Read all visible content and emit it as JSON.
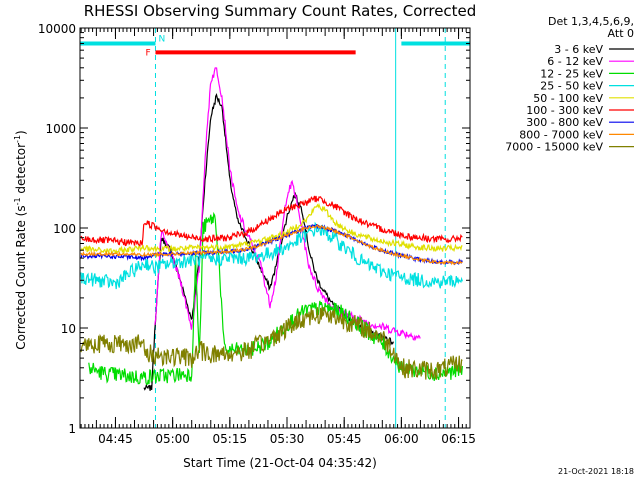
{
  "chart_data": {
    "type": "line",
    "title": "RHESSI Observing Summary Count Rates, Corrected",
    "xlabel": "Start Time (21-Oct-04 04:35:42)",
    "ylabel_parts": [
      "Corrected Count Rate (s",
      "-1",
      " detector",
      "-1",
      ")"
    ],
    "y_scale": "log",
    "ylim": [
      1,
      10000
    ],
    "y_ticks": [
      {
        "value": 1,
        "label": "1"
      },
      {
        "value": 10,
        "label": "10"
      },
      {
        "value": 100,
        "label": "100"
      },
      {
        "value": 1000,
        "label": "1000"
      },
      {
        "value": 10000,
        "label": "10000"
      }
    ],
    "xlim": [
      "04:35:42",
      "06:18:00"
    ],
    "x_ticks": [
      "04:45",
      "05:00",
      "05:15",
      "05:30",
      "05:45",
      "06:00",
      "06:15"
    ],
    "legend_position": "top-right outside",
    "legend_header": [
      "Det 1,3,4,5,6,9,",
      "Att 0"
    ],
    "footer_date": "21-Oct-2021 18:18",
    "flags": [
      {
        "label": "N",
        "color": "#00e0e0",
        "from": "04:35:42",
        "to": "04:55:30",
        "value": 7000
      },
      {
        "label": "N",
        "color": "#00e0e0",
        "from": "06:00:00",
        "to": "06:18:00",
        "value": 7000
      },
      {
        "label": "F",
        "color": "#ff0000",
        "from": "04:55:30",
        "to": "05:48:00",
        "value": 5700
      }
    ],
    "markers": [
      {
        "time": "04:55:30",
        "style": "dashed",
        "color": "#00e0e0"
      },
      {
        "time": "05:58:30",
        "style": "solid",
        "color": "#00e0e0"
      },
      {
        "time": "06:11:30",
        "style": "dashed",
        "color": "#00e0e0"
      },
      {
        "time": "04:35:42",
        "style": "solid",
        "color": "#00e0e0"
      }
    ],
    "series": [
      {
        "name": "3 - 6 keV",
        "color": "#000000",
        "noise": 0.03,
        "points": [
          [
            "04:52:30",
            2.5
          ],
          [
            "04:54:30",
            2.5
          ],
          [
            "04:55:20",
            10
          ],
          [
            "04:57:00",
            80
          ],
          [
            "04:59:30",
            60
          ],
          [
            "05:02:00",
            30
          ],
          [
            "05:05:00",
            12
          ],
          [
            "05:07:00",
            50
          ],
          [
            "05:08:30",
            300
          ],
          [
            "05:10:00",
            1300
          ],
          [
            "05:11:30",
            2100
          ],
          [
            "05:13:00",
            1600
          ],
          [
            "05:15:00",
            300
          ],
          [
            "05:17:00",
            120
          ],
          [
            "05:20:00",
            70
          ],
          [
            "05:23:00",
            40
          ],
          [
            "05:25:30",
            25
          ],
          [
            "05:27:00",
            40
          ],
          [
            "05:30:00",
            130
          ],
          [
            "05:32:00",
            220
          ],
          [
            "05:34:00",
            150
          ],
          [
            "05:36:00",
            55
          ],
          [
            "05:38:00",
            30
          ],
          [
            "05:42:00",
            17
          ],
          [
            "05:47:00",
            12
          ],
          [
            "05:52:00",
            9
          ],
          [
            "05:56:00",
            8
          ],
          [
            "05:58:00",
            7
          ]
        ]
      },
      {
        "name": "6 - 12 keV",
        "color": "#ff00ff",
        "noise": 0.04,
        "points": [
          [
            "04:55:20",
            10
          ],
          [
            "04:57:00",
            90
          ],
          [
            "04:59:30",
            55
          ],
          [
            "05:02:00",
            30
          ],
          [
            "05:05:00",
            10
          ],
          [
            "05:07:00",
            40
          ],
          [
            "05:08:30",
            500
          ],
          [
            "05:10:00",
            3000
          ],
          [
            "05:11:30",
            4000
          ],
          [
            "05:13:00",
            2000
          ],
          [
            "05:15:00",
            400
          ],
          [
            "05:17:00",
            150
          ],
          [
            "05:20:00",
            80
          ],
          [
            "05:23:00",
            45
          ],
          [
            "05:25:30",
            17
          ],
          [
            "05:27:00",
            30
          ],
          [
            "05:30:00",
            220
          ],
          [
            "05:31:30",
            280
          ],
          [
            "05:33:30",
            120
          ],
          [
            "05:35:30",
            45
          ],
          [
            "05:38:00",
            25
          ],
          [
            "05:42:00",
            16
          ],
          [
            "05:47:00",
            13
          ],
          [
            "05:52:00",
            11
          ],
          [
            "05:56:00",
            10
          ],
          [
            "06:00:00",
            9
          ],
          [
            "06:05:00",
            8
          ]
        ]
      },
      {
        "name": "12 - 25 keV",
        "color": "#00dd00",
        "noise": 0.08,
        "points": [
          [
            "04:38:00",
            4
          ],
          [
            "04:42:00",
            3.5
          ],
          [
            "04:52:00",
            3.2
          ],
          [
            "05:05:00",
            3.5
          ],
          [
            "05:06:00",
            50
          ],
          [
            "05:07:00",
            5
          ],
          [
            "05:08:00",
            100
          ],
          [
            "05:10:00",
            120
          ],
          [
            "05:11:00",
            130
          ],
          [
            "05:12:00",
            60
          ],
          [
            "05:13:30",
            6
          ],
          [
            "05:16:00",
            6
          ],
          [
            "05:20:00",
            6
          ],
          [
            "05:25:00",
            7
          ],
          [
            "05:30:00",
            11
          ],
          [
            "05:35:00",
            15
          ],
          [
            "05:40:00",
            16
          ],
          [
            "05:45:00",
            14
          ],
          [
            "05:50:00",
            10
          ],
          [
            "05:55:00",
            7
          ],
          [
            "06:00:00",
            4
          ],
          [
            "06:10:00",
            3.5
          ],
          [
            "06:16:00",
            3.8
          ]
        ]
      },
      {
        "name": "25 - 50 keV",
        "color": "#00e0e0",
        "noise": 0.07,
        "points": [
          [
            "04:36:00",
            32
          ],
          [
            "04:40:00",
            30
          ],
          [
            "04:45:00",
            28
          ],
          [
            "04:50:00",
            38
          ],
          [
            "04:53:00",
            45
          ],
          [
            "04:55:00",
            40
          ],
          [
            "05:00:00",
            45
          ],
          [
            "05:05:00",
            48
          ],
          [
            "05:10:00",
            48
          ],
          [
            "05:15:00",
            50
          ],
          [
            "05:20:00",
            50
          ],
          [
            "05:25:00",
            55
          ],
          [
            "05:30:00",
            65
          ],
          [
            "05:34:00",
            80
          ],
          [
            "05:38:00",
            100
          ],
          [
            "05:42:00",
            80
          ],
          [
            "05:46:00",
            60
          ],
          [
            "05:50:00",
            45
          ],
          [
            "05:55:00",
            37
          ],
          [
            "06:00:00",
            32
          ],
          [
            "06:05:00",
            30
          ],
          [
            "06:10:00",
            29
          ],
          [
            "06:16:00",
            30
          ]
        ]
      },
      {
        "name": "50 - 100 keV",
        "color": "#e0e000",
        "noise": 0.03,
        "points": [
          [
            "04:36:00",
            62
          ],
          [
            "04:45:00",
            58
          ],
          [
            "04:53:00",
            65
          ],
          [
            "04:55:00",
            62
          ],
          [
            "05:00:00",
            62
          ],
          [
            "05:05:00",
            63
          ],
          [
            "05:10:00",
            64
          ],
          [
            "05:15:00",
            65
          ],
          [
            "05:20:00",
            70
          ],
          [
            "05:25:00",
            78
          ],
          [
            "05:30:00",
            90
          ],
          [
            "05:35:00",
            120
          ],
          [
            "05:38:00",
            170
          ],
          [
            "05:40:00",
            150
          ],
          [
            "05:43:00",
            110
          ],
          [
            "05:47:00",
            90
          ],
          [
            "05:52:00",
            78
          ],
          [
            "05:58:00",
            70
          ],
          [
            "06:05:00",
            64
          ],
          [
            "06:10:00",
            62
          ],
          [
            "06:16:00",
            63
          ]
        ]
      },
      {
        "name": "100 - 300 keV",
        "color": "#ff0000",
        "noise": 0.035,
        "points": [
          [
            "04:36:00",
            78
          ],
          [
            "04:42:00",
            75
          ],
          [
            "04:52:00",
            70
          ],
          [
            "04:52:30",
            115
          ],
          [
            "04:55:00",
            105
          ],
          [
            "05:00:00",
            88
          ],
          [
            "05:05:00",
            80
          ],
          [
            "05:10:00",
            78
          ],
          [
            "05:15:00",
            80
          ],
          [
            "05:20:00",
            92
          ],
          [
            "05:25:00",
            120
          ],
          [
            "05:30:00",
            155
          ],
          [
            "05:35:00",
            180
          ],
          [
            "05:38:00",
            200
          ],
          [
            "05:42:00",
            170
          ],
          [
            "05:47:00",
            130
          ],
          [
            "05:52:00",
            105
          ],
          [
            "05:58:00",
            90
          ],
          [
            "06:02:00",
            82
          ],
          [
            "06:08:00",
            78
          ],
          [
            "06:13:00",
            76
          ],
          [
            "06:16:00",
            82
          ]
        ]
      },
      {
        "name": "300 - 800 keV",
        "color": "#0000ee",
        "noise": 0.02,
        "points": [
          [
            "04:36:00",
            52
          ],
          [
            "04:45:00",
            52
          ],
          [
            "04:52:00",
            50
          ],
          [
            "04:55:00",
            54
          ],
          [
            "05:00:00",
            55
          ],
          [
            "05:05:00",
            56
          ],
          [
            "05:10:00",
            57
          ],
          [
            "05:15:00",
            58
          ],
          [
            "05:20:00",
            62
          ],
          [
            "05:25:00",
            72
          ],
          [
            "05:30:00",
            85
          ],
          [
            "05:35:00",
            100
          ],
          [
            "05:38:00",
            105
          ],
          [
            "05:42:00",
            95
          ],
          [
            "05:47:00",
            80
          ],
          [
            "05:52:00",
            65
          ],
          [
            "05:58:00",
            55
          ],
          [
            "06:05:00",
            48
          ],
          [
            "06:10:00",
            45
          ],
          [
            "06:16:00",
            46
          ]
        ]
      },
      {
        "name": "800 - 7000 keV",
        "color": "#ff8800",
        "noise": 0.015,
        "points": [
          [
            "04:36:00",
            55
          ],
          [
            "04:45:00",
            55
          ],
          [
            "04:52:00",
            54
          ],
          [
            "05:00:00",
            55
          ],
          [
            "05:05:00",
            56
          ],
          [
            "05:10:00",
            57
          ],
          [
            "05:15:00",
            58
          ],
          [
            "05:20:00",
            62
          ],
          [
            "05:25:00",
            72
          ],
          [
            "05:30:00",
            85
          ],
          [
            "05:35:00",
            100
          ],
          [
            "05:38:00",
            104
          ],
          [
            "05:42:00",
            95
          ],
          [
            "05:47:00",
            80
          ],
          [
            "05:52:00",
            65
          ],
          [
            "05:58:00",
            55
          ],
          [
            "06:05:00",
            48
          ],
          [
            "06:10:00",
            45
          ],
          [
            "06:16:00",
            45
          ]
        ]
      },
      {
        "name": "7000 - 15000 keV",
        "color": "#808000",
        "noise": 0.1,
        "points": [
          [
            "04:36:00",
            7
          ],
          [
            "04:45:00",
            7
          ],
          [
            "04:52:00",
            7
          ],
          [
            "04:53:00",
            5.5
          ],
          [
            "05:00:00",
            5.2
          ],
          [
            "05:05:00",
            5
          ],
          [
            "05:07:00",
            6
          ],
          [
            "05:10:00",
            5.5
          ],
          [
            "05:15:00",
            5.5
          ],
          [
            "05:20:00",
            6
          ],
          [
            "05:25:00",
            7.5
          ],
          [
            "05:30:00",
            10
          ],
          [
            "05:35:00",
            13
          ],
          [
            "05:40:00",
            14
          ],
          [
            "05:45:00",
            12
          ],
          [
            "05:50:00",
            10
          ],
          [
            "05:55:00",
            8
          ],
          [
            "05:58:00",
            6
          ],
          [
            "06:00:00",
            4
          ],
          [
            "06:05:00",
            3.8
          ],
          [
            "06:10:00",
            3.8
          ],
          [
            "06:16:00",
            4.5
          ]
        ]
      }
    ]
  }
}
